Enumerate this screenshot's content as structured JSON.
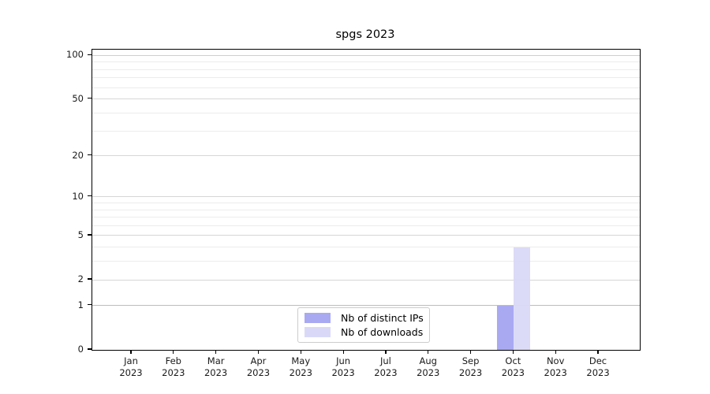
{
  "title": "spgs 2023",
  "chart_data": {
    "type": "bar",
    "title": "spgs 2023",
    "categories": [
      "Jan 2023",
      "Feb 2023",
      "Mar 2023",
      "Apr 2023",
      "May 2023",
      "Jun 2023",
      "Jul 2023",
      "Aug 2023",
      "Sep 2023",
      "Oct 2023",
      "Nov 2023",
      "Dec 2023"
    ],
    "series": [
      {
        "name": "Nb of distinct IPs",
        "color": "#a9a9f2",
        "values": [
          0,
          0,
          0,
          0,
          0,
          0,
          0,
          0,
          0,
          1,
          0,
          0
        ]
      },
      {
        "name": "Nb of downloads",
        "color": "#d9d9f7",
        "values": [
          0,
          0,
          0,
          0,
          0,
          0,
          0,
          0,
          0,
          4,
          0,
          0
        ]
      }
    ],
    "yscale": "log1p",
    "ylim": [
      0,
      110
    ],
    "y_tick_labels": [
      0,
      1,
      2,
      5,
      10,
      20,
      50,
      100
    ],
    "y_minor_gridlines": [
      3,
      4,
      6,
      7,
      8,
      9,
      30,
      40,
      60,
      70,
      80,
      90
    ],
    "grid": true,
    "legend_position": "lower center",
    "xlabel": "",
    "ylabel": ""
  },
  "colors": {
    "grid_major": "#d6d6d6",
    "grid_minor": "#ececec",
    "grid_emphasis": "#bdbdbd",
    "spine": "#000000",
    "text": "#1a1a1a",
    "legend_border": "#cccccc"
  }
}
